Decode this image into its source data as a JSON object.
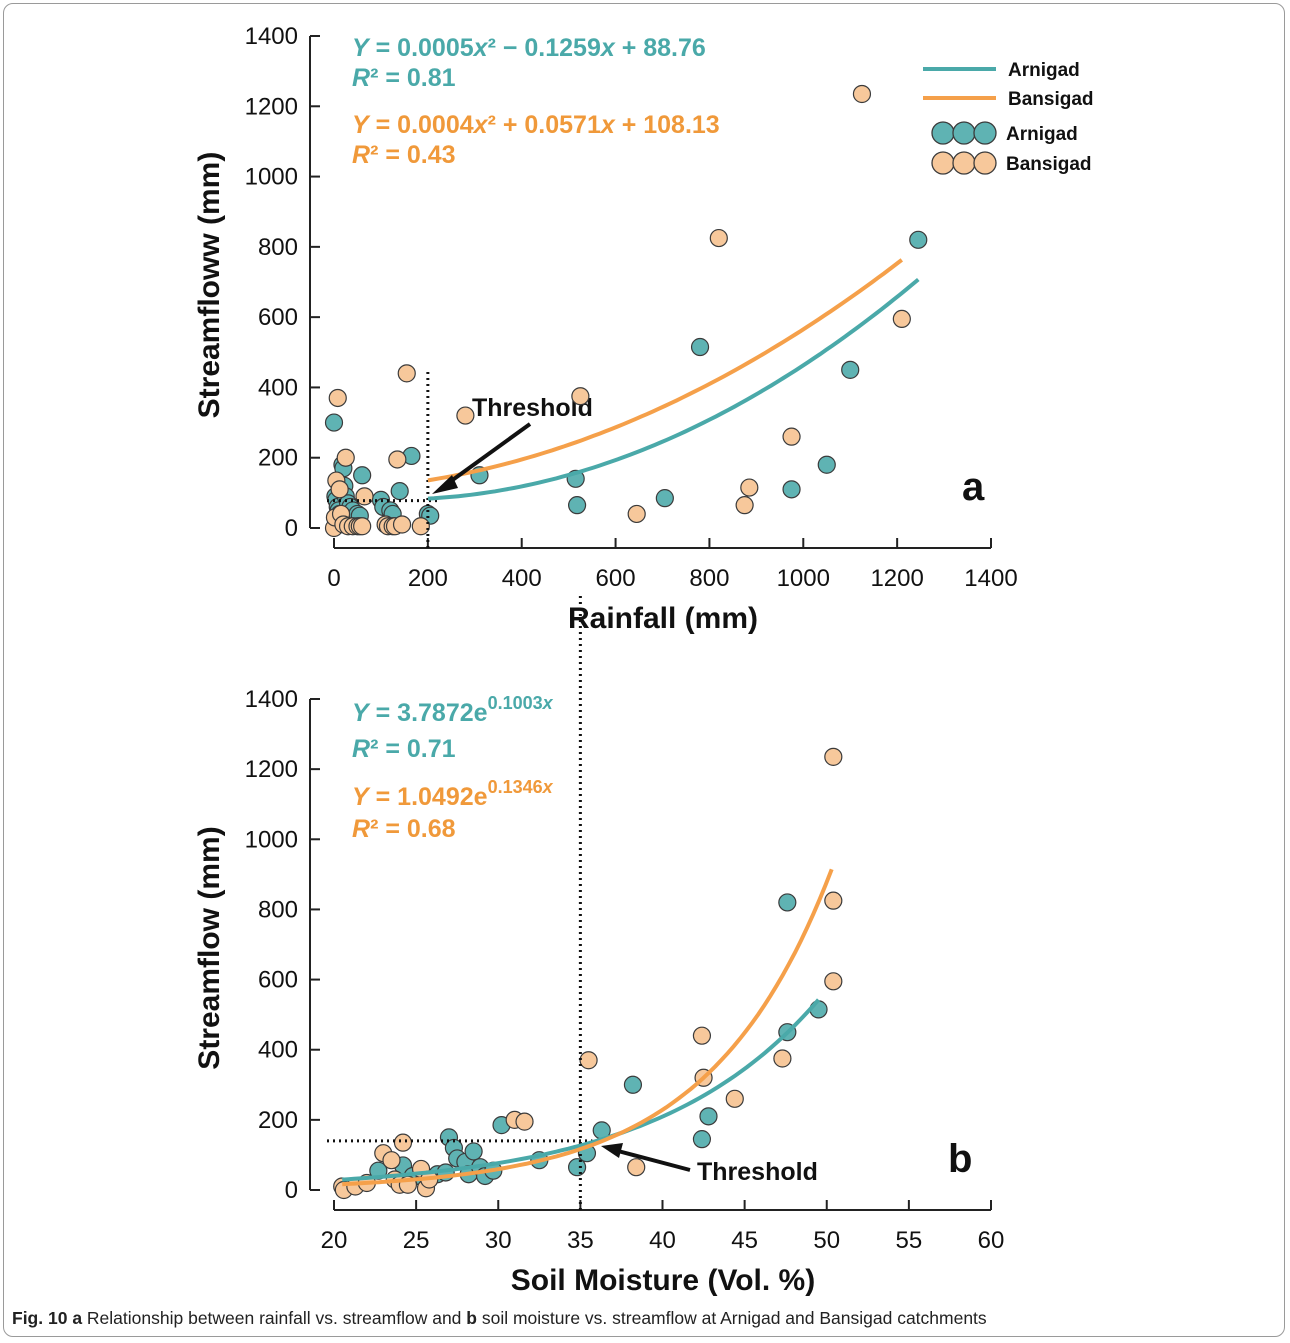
{
  "colors": {
    "arnigad": "#5fb3b3",
    "bansigad": "#f7c89b",
    "arnigad_line": "#4aa9a9",
    "bansigad_line": "#f5a04a",
    "eq_arnigad": "#4aa9a9",
    "eq_bansigad": "#f0993a"
  },
  "legend": {
    "line_arnigad": "Arnigad",
    "line_bansigad": "Bansigad",
    "point_arnigad": "Arnigad",
    "point_bansigad": "Bansigad"
  },
  "caption": {
    "fig": "Fig. 10",
    "a": "a",
    "text1": " Relationship between rainfall vs. streamflow and ",
    "b": "b",
    "text2": " soil moisture vs. streamflow at Arnigad and Bansigad catchments"
  },
  "chart_data": [
    {
      "type": "scatter",
      "panel_label": "a",
      "xlabel": "Rainfall (mm)",
      "ylabel": "Streamfloww (mm)",
      "xlim": [
        0,
        1400
      ],
      "ylim": [
        0,
        1400
      ],
      "xticks": [
        "0",
        "200",
        "400",
        "600",
        "800",
        "1000",
        "1200",
        "1400"
      ],
      "yticks": [
        "0",
        "200",
        "400",
        "600",
        "800",
        "1000",
        "1200",
        "1400"
      ],
      "threshold_label": "Threshold",
      "threshold": {
        "x": 200,
        "y": 78
      },
      "series": [
        {
          "name": "Arnigad",
          "points": [
            [
              0,
              300
            ],
            [
              3,
              90
            ],
            [
              5,
              80
            ],
            [
              8,
              60
            ],
            [
              10,
              50
            ],
            [
              12,
              40
            ],
            [
              15,
              30
            ],
            [
              18,
              180
            ],
            [
              20,
              170
            ],
            [
              22,
              120
            ],
            [
              25,
              90
            ],
            [
              30,
              70
            ],
            [
              35,
              60
            ],
            [
              40,
              50
            ],
            [
              50,
              40
            ],
            [
              55,
              35
            ],
            [
              60,
              150
            ],
            [
              100,
              80
            ],
            [
              105,
              60
            ],
            [
              120,
              50
            ],
            [
              125,
              40
            ],
            [
              140,
              105
            ],
            [
              165,
              205
            ],
            [
              200,
              40
            ],
            [
              205,
              35
            ],
            [
              310,
              150
            ],
            [
              515,
              140
            ],
            [
              518,
              65
            ],
            [
              705,
              85
            ],
            [
              780,
              515
            ],
            [
              975,
              110
            ],
            [
              1050,
              180
            ],
            [
              1100,
              450
            ],
            [
              1245,
              820
            ]
          ],
          "fit": {
            "equation": "Y = 0.0005x² − 0.1259x + 88.76",
            "r2": "R² = 0.81",
            "coeffs": [
              0.0005,
              -0.1259,
              88.76
            ],
            "x_range": [
              200,
              1245
            ]
          }
        },
        {
          "name": "Bansigad",
          "points": [
            [
              0,
              0
            ],
            [
              2,
              30
            ],
            [
              5,
              135
            ],
            [
              8,
              370
            ],
            [
              12,
              110
            ],
            [
              15,
              40
            ],
            [
              20,
              10
            ],
            [
              25,
              200
            ],
            [
              30,
              5
            ],
            [
              40,
              5
            ],
            [
              50,
              5
            ],
            [
              55,
              5
            ],
            [
              60,
              5
            ],
            [
              65,
              90
            ],
            [
              110,
              10
            ],
            [
              115,
              5
            ],
            [
              125,
              5
            ],
            [
              130,
              5
            ],
            [
              135,
              195
            ],
            [
              145,
              10
            ],
            [
              155,
              440
            ],
            [
              185,
              5
            ],
            [
              280,
              320
            ],
            [
              525,
              375
            ],
            [
              645,
              40
            ],
            [
              820,
              825
            ],
            [
              875,
              65
            ],
            [
              885,
              115
            ],
            [
              975,
              260
            ],
            [
              1125,
              1235
            ],
            [
              1210,
              595
            ]
          ],
          "fit": {
            "equation": "Y = 0.0004x² + 0.0571x + 108.13",
            "r2": "R² = 0.43",
            "coeffs": [
              0.0004,
              0.0571,
              108.13
            ],
            "x_range": [
              200,
              1210
            ]
          }
        }
      ]
    },
    {
      "type": "scatter",
      "panel_label": "b",
      "xlabel": "Soil Moisture (Vol. %)",
      "ylabel": "Streamflow (mm)",
      "xlim": [
        20,
        60
      ],
      "ylim": [
        0,
        1400
      ],
      "xticks": [
        "20",
        "25",
        "30",
        "35",
        "40",
        "45",
        "50",
        "55",
        "60"
      ],
      "yticks": [
        "0",
        "200",
        "400",
        "600",
        "800",
        "1000",
        "1200",
        "1400"
      ],
      "threshold_label": "Threshold",
      "threshold": {
        "x": 35,
        "y": 140
      },
      "series": [
        {
          "name": "Arnigad",
          "points": [
            [
              22.7,
              55
            ],
            [
              24.2,
              70
            ],
            [
              24.8,
              40
            ],
            [
              25.5,
              30
            ],
            [
              26.3,
              45
            ],
            [
              26.8,
              50
            ],
            [
              27,
              150
            ],
            [
              27.3,
              120
            ],
            [
              27.5,
              90
            ],
            [
              28,
              80
            ],
            [
              28.2,
              45
            ],
            [
              28.5,
              110
            ],
            [
              28.9,
              65
            ],
            [
              29.2,
              40
            ],
            [
              29.7,
              55
            ],
            [
              30.2,
              185
            ],
            [
              32.5,
              85
            ],
            [
              34.8,
              65
            ],
            [
              35.4,
              105
            ],
            [
              36.3,
              170
            ],
            [
              38.2,
              300
            ],
            [
              42.4,
              145
            ],
            [
              42.8,
              210
            ],
            [
              47.6,
              820
            ],
            [
              47.6,
              450
            ],
            [
              49.5,
              515
            ]
          ],
          "fit": {
            "equation": "Y = 3.7872e",
            "exponent": "0.1003x",
            "r2": "R² = 0.71",
            "a": 3.7872,
            "b": 0.1003,
            "x_range": [
              20.5,
              49.5
            ]
          }
        },
        {
          "name": "Bansigad",
          "points": [
            [
              20.5,
              10
            ],
            [
              20.6,
              0
            ],
            [
              21.3,
              10
            ],
            [
              22,
              20
            ],
            [
              23,
              105
            ],
            [
              23.5,
              85
            ],
            [
              23.7,
              30
            ],
            [
              24,
              15
            ],
            [
              24.2,
              135
            ],
            [
              24.5,
              15
            ],
            [
              25.3,
              60
            ],
            [
              25.6,
              5
            ],
            [
              25.8,
              30
            ],
            [
              31,
              200
            ],
            [
              31.6,
              195
            ],
            [
              35.5,
              370
            ],
            [
              38.4,
              65
            ],
            [
              42.4,
              440
            ],
            [
              42.5,
              320
            ],
            [
              44.4,
              260
            ],
            [
              47.3,
              375
            ],
            [
              50.4,
              1235
            ],
            [
              50.4,
              825
            ],
            [
              50.4,
              595
            ]
          ],
          "fit": {
            "equation": "Y = 1.0492e",
            "exponent": "0.1346x",
            "r2": "R² = 0.68",
            "a": 1.0492,
            "b": 0.1346,
            "x_range": [
              20.5,
              50.3
            ]
          }
        }
      ]
    }
  ]
}
